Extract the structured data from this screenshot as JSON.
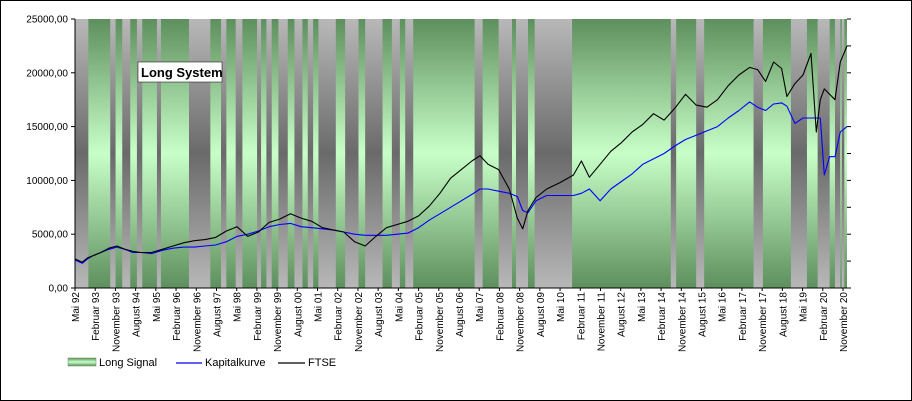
{
  "chart_data": {
    "type": "line",
    "title": "Long System",
    "ylim": [
      0,
      25000
    ],
    "y_ticks": [
      "0,00",
      "5000,00",
      "10000,00",
      "15000,00",
      "20000,00",
      "25000,00"
    ],
    "x_ticks": [
      "Mai 92",
      "Februar 93",
      "November 93",
      "August 94",
      "Mai 95",
      "Februar 96",
      "November 96",
      "August 97",
      "Mai 98",
      "Februar 99",
      "November 99",
      "August 00",
      "Mai 01",
      "Februar 02",
      "November 02",
      "August 03",
      "Mai 04",
      "Februar 05",
      "November 05",
      "August 06",
      "Mai 07",
      "Februar 08",
      "November 08",
      "August 09",
      "Mai 10",
      "Februar 11",
      "November 11",
      "August 12",
      "Mai 13",
      "Februar 14",
      "November 14",
      "August 15",
      "Mai 16",
      "Februar 17",
      "November 17",
      "August 18",
      "Mai 19",
      "Februar 20",
      "November 20"
    ],
    "x_range": [
      1992.33,
      2021.25
    ],
    "legend": [
      "Long Signal",
      "Kapitalkurve",
      "FTSE"
    ],
    "legend_position": "bottom",
    "colors": {
      "kapitalkurve": "#0000ff",
      "ftse": "#000000",
      "long_signal": "#6aa06a",
      "off_signal": "#808080"
    },
    "off_periods": [
      [
        1992.33,
        1992.83
      ],
      [
        1993.65,
        1993.85
      ],
      [
        1994.1,
        1994.4
      ],
      [
        1994.65,
        1994.85
      ],
      [
        1995.4,
        1995.55
      ],
      [
        1996.6,
        1997.4
      ],
      [
        1997.8,
        1998.0
      ],
      [
        1998.35,
        1998.6
      ],
      [
        1999.15,
        1999.3
      ],
      [
        1999.5,
        1999.7
      ],
      [
        1999.95,
        2000.3
      ],
      [
        2000.55,
        2000.85
      ],
      [
        2001.05,
        2001.25
      ],
      [
        2001.45,
        2002.1
      ],
      [
        2002.45,
        2002.95
      ],
      [
        2003.2,
        2003.85
      ],
      [
        2004.2,
        2004.5
      ],
      [
        2004.7,
        2005.0
      ],
      [
        2007.3,
        2007.6
      ],
      [
        2008.2,
        2008.7
      ],
      [
        2008.85,
        2009.3
      ],
      [
        2009.55,
        2010.95
      ],
      [
        2014.65,
        2014.85
      ],
      [
        2015.6,
        2015.9
      ],
      [
        2017.75,
        2018.1
      ],
      [
        2019.15,
        2019.75
      ],
      [
        2020.15,
        2020.6
      ],
      [
        2020.8,
        2021.0
      ],
      [
        2021.05,
        2021.15
      ]
    ],
    "series": [
      {
        "name": "Kapitalkurve",
        "x": [
          1992.33,
          1992.6,
          1992.8,
          1993.0,
          1993.3,
          1993.6,
          1993.9,
          1994.2,
          1994.5,
          1994.8,
          1995.2,
          1995.6,
          1996.0,
          1996.4,
          1996.8,
          1997.2,
          1997.6,
          1998.0,
          1998.4,
          1998.8,
          1999.2,
          1999.6,
          2000.0,
          2000.4,
          2000.8,
          2001.2,
          2001.6,
          2002.0,
          2002.4,
          2002.8,
          2003.2,
          2003.6,
          2004.0,
          2004.4,
          2004.8,
          2005.2,
          2005.6,
          2006.0,
          2006.4,
          2006.8,
          2007.2,
          2007.5,
          2007.8,
          2008.2,
          2008.6,
          2008.9,
          2009.1,
          2009.3,
          2009.6,
          2010.0,
          2010.5,
          2011.0,
          2011.3,
          2011.6,
          2012.0,
          2012.4,
          2012.8,
          2013.2,
          2013.6,
          2014.0,
          2014.4,
          2014.8,
          2015.2,
          2015.6,
          2016.0,
          2016.4,
          2016.8,
          2017.2,
          2017.6,
          2017.9,
          2018.2,
          2018.5,
          2018.8,
          2019.0,
          2019.3,
          2019.6,
          2019.9,
          2020.1,
          2020.25,
          2020.4,
          2020.6,
          2020.8,
          2021.0,
          2021.25
        ],
        "values": [
          2600,
          2300,
          2700,
          3000,
          3300,
          3600,
          3800,
          3600,
          3300,
          3300,
          3200,
          3500,
          3700,
          3800,
          3800,
          3900,
          4000,
          4300,
          4800,
          5000,
          5300,
          5700,
          5900,
          6000,
          5700,
          5600,
          5500,
          5400,
          5200,
          5000,
          4900,
          4900,
          4900,
          5000,
          5100,
          5600,
          6300,
          6900,
          7500,
          8100,
          8700,
          9200,
          9200,
          9000,
          8800,
          8500,
          7200,
          7000,
          8100,
          8600,
          8600,
          8600,
          8800,
          9200,
          8100,
          9200,
          9900,
          10600,
          11500,
          12000,
          12500,
          13200,
          13800,
          14200,
          14600,
          15000,
          15800,
          16500,
          17300,
          16800,
          16500,
          17100,
          17200,
          16900,
          15300,
          15800,
          15800,
          15800,
          15800,
          10500,
          12200,
          12200,
          14500,
          15000
        ]
      },
      {
        "name": "FTSE",
        "x": [
          1992.33,
          1992.6,
          1992.8,
          1993.0,
          1993.3,
          1993.6,
          1993.9,
          1994.2,
          1994.5,
          1994.8,
          1995.2,
          1995.6,
          1996.0,
          1996.4,
          1996.8,
          1997.2,
          1997.6,
          1998.0,
          1998.4,
          1998.8,
          1999.2,
          1999.6,
          2000.0,
          2000.4,
          2000.8,
          2001.2,
          2001.6,
          2002.0,
          2002.4,
          2002.8,
          2003.2,
          2003.6,
          2004.0,
          2004.4,
          2004.8,
          2005.2,
          2005.6,
          2006.0,
          2006.4,
          2006.8,
          2007.2,
          2007.5,
          2007.8,
          2008.2,
          2008.6,
          2008.9,
          2009.1,
          2009.3,
          2009.6,
          2010.0,
          2010.5,
          2011.0,
          2011.3,
          2011.6,
          2012.0,
          2012.4,
          2012.8,
          2013.2,
          2013.6,
          2014.0,
          2014.4,
          2014.8,
          2015.2,
          2015.6,
          2016.0,
          2016.4,
          2016.8,
          2017.2,
          2017.6,
          2017.9,
          2018.2,
          2018.5,
          2018.8,
          2019.0,
          2019.3,
          2019.6,
          2019.9,
          2020.1,
          2020.25,
          2020.4,
          2020.6,
          2020.8,
          2021.0,
          2021.25
        ],
        "values": [
          2700,
          2400,
          2800,
          3000,
          3300,
          3700,
          3900,
          3600,
          3400,
          3300,
          3300,
          3600,
          3900,
          4200,
          4400,
          4500,
          4700,
          5300,
          5700,
          4800,
          5200,
          6100,
          6400,
          6900,
          6500,
          6200,
          5600,
          5400,
          5200,
          4300,
          3900,
          4800,
          5600,
          5900,
          6200,
          6700,
          7600,
          8800,
          10200,
          11000,
          11800,
          12300,
          11500,
          11000,
          9200,
          6500,
          5500,
          7200,
          8400,
          9200,
          9800,
          10500,
          11800,
          10300,
          11500,
          12700,
          13500,
          14500,
          15200,
          16200,
          15600,
          16700,
          18000,
          17000,
          16800,
          17500,
          18800,
          19800,
          20500,
          20300,
          19200,
          21000,
          20400,
          17800,
          19000,
          19800,
          21800,
          14500,
          17500,
          18500,
          18000,
          17500,
          21000,
          22500
        ]
      }
    ]
  }
}
